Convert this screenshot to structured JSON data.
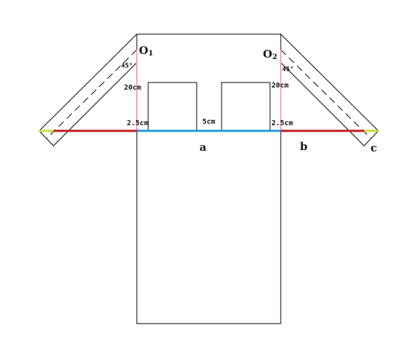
{
  "labels": {
    "o1_main": "O",
    "o1_sub": "1",
    "o2_main": "O",
    "o2_sub": "2",
    "angle_left": "45°",
    "angle_right": "45°",
    "height_left": "20cm",
    "height_right": "20cm",
    "offset_left": "2.5cm",
    "offset_right": "2.5cm",
    "gap": "5cm",
    "seg_a": "a",
    "seg_b": "b",
    "seg_c": "c"
  },
  "colors": {
    "outline": "#000000",
    "blue_segment": "#1e9ad6",
    "red_segment": "#c0191c",
    "pink_line": "#f4a6c2",
    "yellow_tip": "#c8dc3c"
  }
}
